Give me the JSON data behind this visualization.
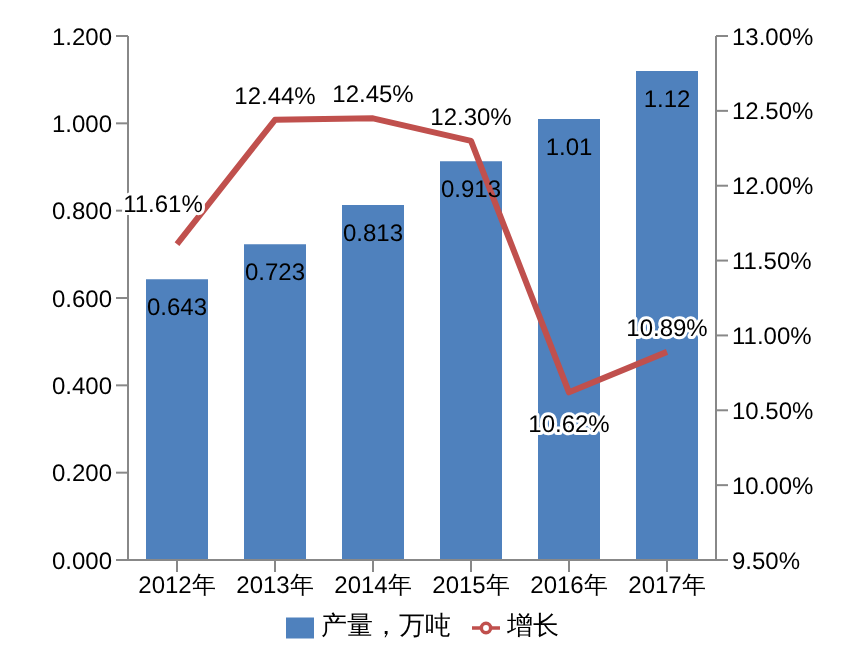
{
  "chart_data": {
    "type": "bar",
    "categories": [
      "2012年",
      "2013年",
      "2014年",
      "2015年",
      "2016年",
      "2017年"
    ],
    "series": [
      {
        "type": "bar",
        "name": "产量，万吨",
        "color": "#4f81bd",
        "values": [
          0.643,
          0.723,
          0.813,
          0.913,
          1.01,
          1.12
        ],
        "value_labels": [
          "0.643",
          "0.723",
          "0.813",
          "0.913",
          "1.01",
          "1.12"
        ]
      },
      {
        "type": "line",
        "name": "增长",
        "color": "#c0504d",
        "axis": "y2",
        "values": [
          11.61,
          12.44,
          12.45,
          12.3,
          10.62,
          10.89
        ],
        "value_labels": [
          "11.61%",
          "12.44%",
          "12.45%",
          "12.30%",
          "10.62%",
          "10.89%"
        ]
      }
    ],
    "ylim": [
      0,
      1.2
    ],
    "yticks": [
      {
        "value": 0,
        "label": "0.000"
      },
      {
        "value": 0.2,
        "label": "0.200"
      },
      {
        "value": 0.4,
        "label": "0.400"
      },
      {
        "value": 0.6,
        "label": "0.600"
      },
      {
        "value": 0.8,
        "label": "0.800"
      },
      {
        "value": 1,
        "label": "1.000"
      },
      {
        "value": 1.2,
        "label": "1.200"
      }
    ],
    "y2lim": [
      9.5,
      13
    ],
    "y2ticks": [
      {
        "value": 9.5,
        "label": "9.50%"
      },
      {
        "value": 10,
        "label": "10.00%"
      },
      {
        "value": 10.5,
        "label": "10.50%"
      },
      {
        "value": 11,
        "label": "11.00%"
      },
      {
        "value": 11.5,
        "label": "11.50%"
      },
      {
        "value": 12,
        "label": "12.00%"
      },
      {
        "value": 12.5,
        "label": "12.50%"
      },
      {
        "value": 13,
        "label": "13.00%"
      }
    ],
    "legend": "bottom",
    "marker": "none",
    "grid": false
  }
}
